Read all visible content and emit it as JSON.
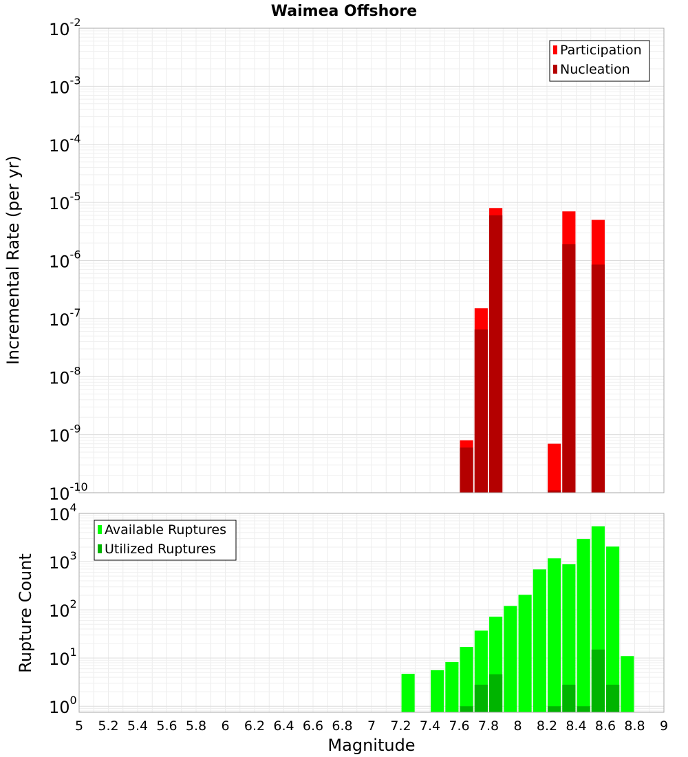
{
  "chart_data": [
    {
      "type": "bar",
      "title": "Waimea Offshore",
      "ylabel": "Incremental Rate (per yr)",
      "xlabel": "",
      "y_scale": "log",
      "ylim": [
        1e-10,
        0.01
      ],
      "y_tick_labels": [
        {
          "base": "10",
          "exp": "-2",
          "value": 0.01
        },
        {
          "base": "10",
          "exp": "-3",
          "value": 0.001
        },
        {
          "base": "10",
          "exp": "-4",
          "value": 0.0001
        },
        {
          "base": "10",
          "exp": "-5",
          "value": 1e-05
        },
        {
          "base": "10",
          "exp": "-6",
          "value": 1e-06
        },
        {
          "base": "10",
          "exp": "-7",
          "value": 1e-07
        },
        {
          "base": "10",
          "exp": "-8",
          "value": 1e-08
        },
        {
          "base": "10",
          "exp": "-9",
          "value": 1e-09
        },
        {
          "base": "10",
          "exp": "-10",
          "value": 1e-10
        }
      ],
      "xlim": [
        5,
        9
      ],
      "bar_width": 0.09,
      "legend": {
        "position": "top-right",
        "entries": [
          "Participation",
          "Nucleation"
        ]
      },
      "series": [
        {
          "name": "Participation",
          "color": "#ff0000",
          "points": [
            [
              7.65,
              8e-10
            ],
            [
              7.75,
              1.5e-07
            ],
            [
              7.85,
              8e-06
            ],
            [
              8.25,
              7e-10
            ],
            [
              8.35,
              7e-06
            ],
            [
              8.55,
              5e-06
            ]
          ]
        },
        {
          "name": "Nucleation",
          "color": "#b40000",
          "points": [
            [
              7.65,
              6e-10
            ],
            [
              7.75,
              6.5e-08
            ],
            [
              7.85,
              6e-06
            ],
            [
              8.25,
              1.1e-10
            ],
            [
              8.35,
              1.9e-06
            ],
            [
              8.55,
              8.5e-07
            ]
          ]
        }
      ]
    },
    {
      "type": "bar",
      "title": "",
      "ylabel": "Rupture Count",
      "xlabel": "Magnitude",
      "y_scale": "log",
      "ylim": [
        0.75,
        10000
      ],
      "y_tick_labels": [
        {
          "base": "10",
          "exp": "4",
          "value": 10000
        },
        {
          "base": "10",
          "exp": "3",
          "value": 1000
        },
        {
          "base": "10",
          "exp": "2",
          "value": 100
        },
        {
          "base": "10",
          "exp": "1",
          "value": 10
        },
        {
          "base": "10",
          "exp": "0",
          "value": 1
        }
      ],
      "xlim": [
        5,
        9
      ],
      "x_tick_labels": [
        "5",
        "5.2",
        "5.4",
        "5.6",
        "5.8",
        "6",
        "6.2",
        "6.4",
        "6.6",
        "6.8",
        "7",
        "7.2",
        "7.4",
        "7.6",
        "7.8",
        "8",
        "8.2",
        "8.4",
        "8.6",
        "8.8",
        "9"
      ],
      "bar_width": 0.09,
      "legend": {
        "position": "top-left",
        "entries": [
          "Available Ruptures",
          "Utilized Ruptures"
        ]
      },
      "series": [
        {
          "name": "Available Ruptures",
          "color": "#00ff00",
          "points": [
            [
              7.25,
              4.7
            ],
            [
              7.45,
              5.6
            ],
            [
              7.55,
              8.3
            ],
            [
              7.65,
              17
            ],
            [
              7.75,
              37
            ],
            [
              7.85,
              72
            ],
            [
              7.95,
              120
            ],
            [
              8.05,
              205
            ],
            [
              8.15,
              690
            ],
            [
              8.25,
              1170
            ],
            [
              8.35,
              880
            ],
            [
              8.45,
              2950
            ],
            [
              8.55,
              5400
            ],
            [
              8.65,
              2050
            ],
            [
              8.75,
              11
            ]
          ]
        },
        {
          "name": "Utilized Ruptures",
          "color": "#00b400",
          "points": [
            [
              7.65,
              1
            ],
            [
              7.75,
              2.8
            ],
            [
              7.85,
              4.6
            ],
            [
              8.25,
              1
            ],
            [
              8.35,
              2.8
            ],
            [
              8.45,
              1
            ],
            [
              8.55,
              15
            ],
            [
              8.65,
              2.8
            ]
          ]
        }
      ]
    }
  ]
}
